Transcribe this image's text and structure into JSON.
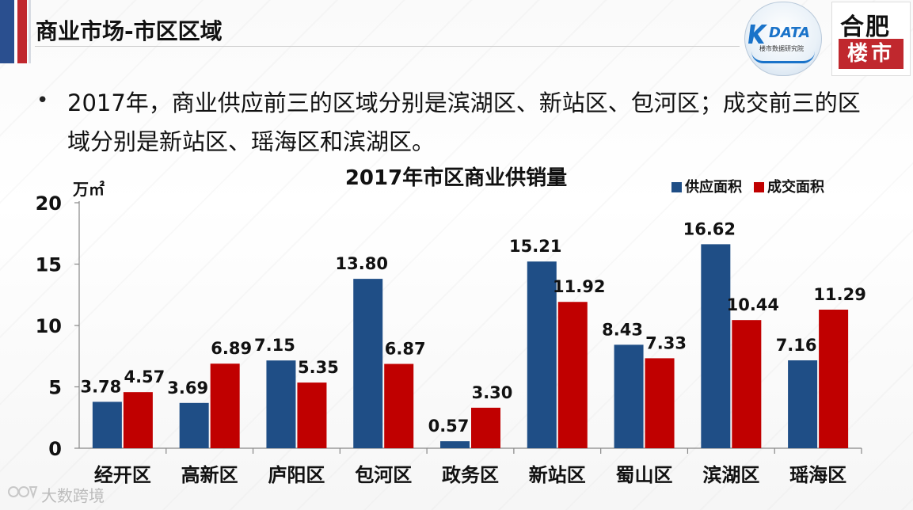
{
  "slide": {
    "title": "商业市场-市区区域",
    "bullet_marker": "•",
    "bullet_text": "2017年，商业供应前三的区域分别是滨湖区、新站区、包河区；成交前三的区域分别是新站区、瑶海区和滨湖区。"
  },
  "logos": {
    "kdata_text": "DATA",
    "kdata_sub": "楼市数据研究院",
    "hefei_top": "合肥",
    "hefei_bottom": "楼市"
  },
  "watermark": {
    "text": "大数跨境"
  },
  "colors": {
    "supply": "#1f4e86",
    "deal": "#c00000",
    "accent_red": "#c0282e",
    "accent_blue": "#2a4f8f"
  },
  "chart_data": {
    "type": "bar",
    "title": "2017年市区商业供销量",
    "ylabel": "万㎡",
    "xlabel": "",
    "ylim": [
      0,
      20
    ],
    "yticks": [
      0,
      5,
      10,
      15,
      20
    ],
    "legend_position": "top-right",
    "categories": [
      "经开区",
      "高新区",
      "庐阳区",
      "包河区",
      "政务区",
      "新站区",
      "蜀山区",
      "滨湖区",
      "瑶海区"
    ],
    "series": [
      {
        "name": "供应面积",
        "values": [
          3.78,
          3.69,
          7.15,
          13.8,
          0.57,
          15.21,
          8.43,
          16.62,
          7.16
        ],
        "labels": [
          "3.78",
          "3.69",
          "7.15",
          "13.80",
          "0.57",
          "15.21",
          "8.43",
          "16.62",
          "7.16"
        ]
      },
      {
        "name": "成交面积",
        "values": [
          4.57,
          6.89,
          5.35,
          6.87,
          3.3,
          11.92,
          7.33,
          10.44,
          11.29
        ],
        "labels": [
          "4.57",
          "6.89",
          "5.35",
          "6.87",
          "3.30",
          "11.92",
          "7.33",
          "10.44",
          "11.29"
        ]
      }
    ]
  }
}
